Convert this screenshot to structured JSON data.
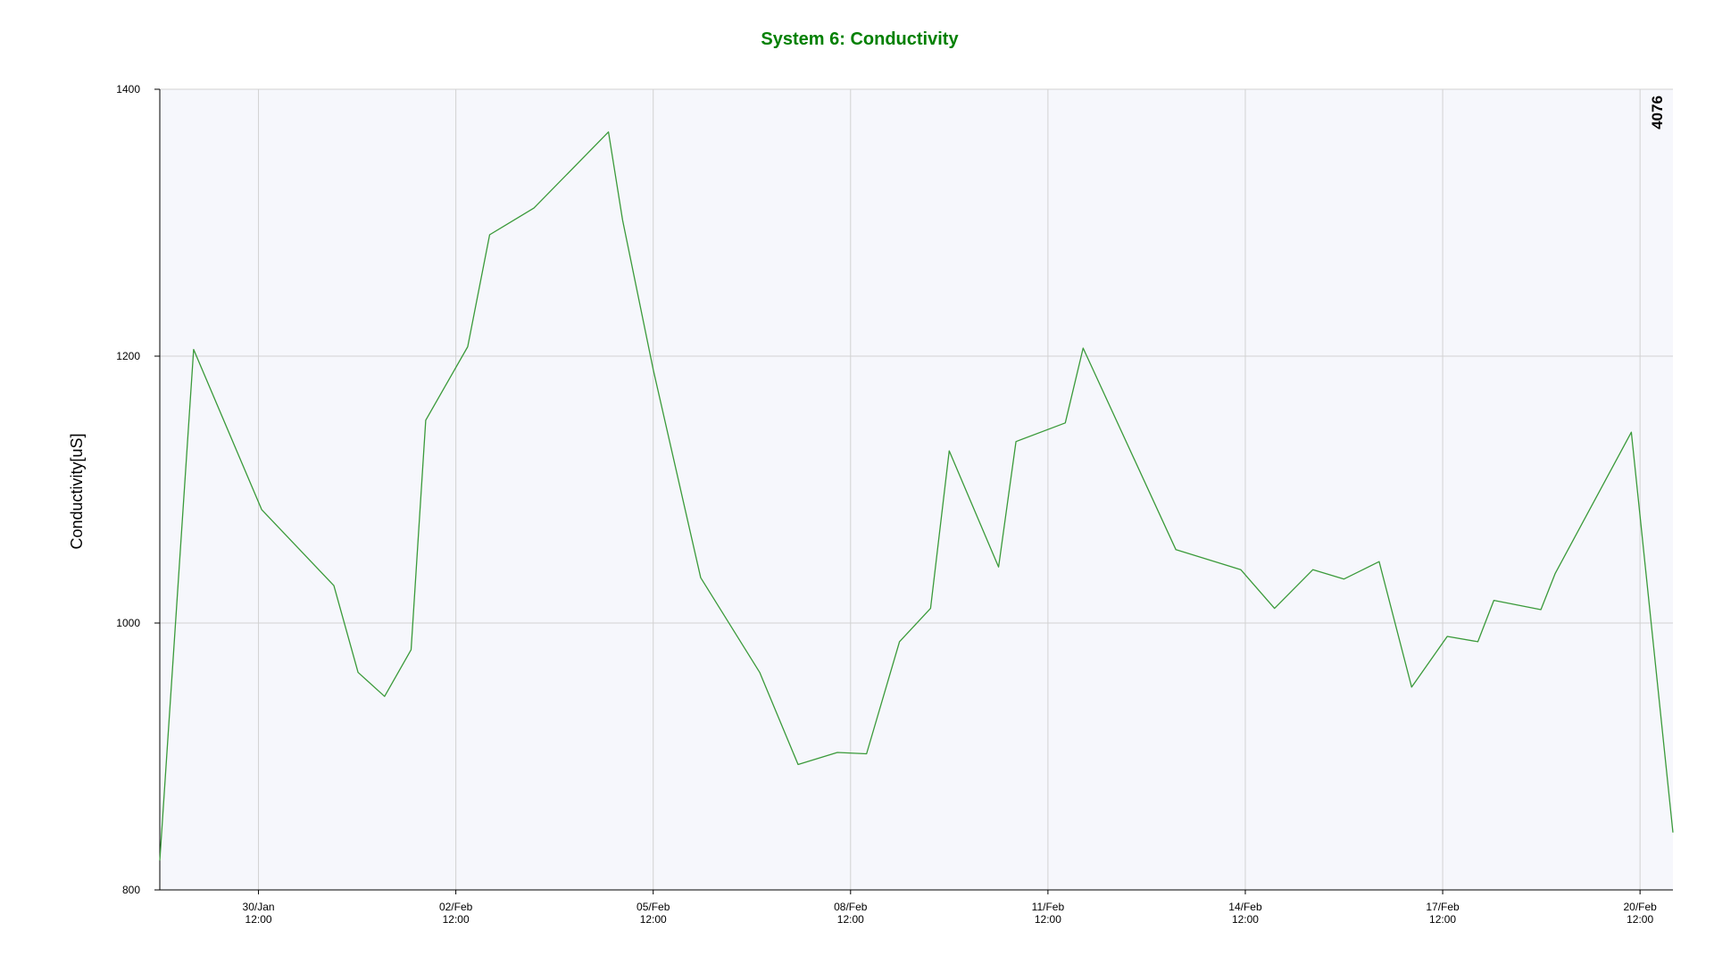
{
  "chart_data": {
    "type": "line",
    "title": "System 6: Conductivity",
    "title_color": "#008000",
    "ylabel": "Conductivity[uS]",
    "xlabel": "",
    "corner_label": "4076",
    "ylim": [
      800,
      1400
    ],
    "yticks": [
      800,
      1000,
      1200,
      1400
    ],
    "xlim": [
      "2025-01-29T00:00",
      "2025-02-21T00:00"
    ],
    "xticks": [
      {
        "date": "2025-01-30T12:00",
        "label": "30/Jan",
        "sublabel": "12:00"
      },
      {
        "date": "2025-02-02T12:00",
        "label": "02/Feb",
        "sublabel": "12:00"
      },
      {
        "date": "2025-02-05T12:00",
        "label": "05/Feb",
        "sublabel": "12:00"
      },
      {
        "date": "2025-02-08T12:00",
        "label": "08/Feb",
        "sublabel": "12:00"
      },
      {
        "date": "2025-02-11T12:00",
        "label": "11/Feb",
        "sublabel": "12:00"
      },
      {
        "date": "2025-02-14T12:00",
        "label": "14/Feb",
        "sublabel": "12:00"
      },
      {
        "date": "2025-02-17T12:00",
        "label": "17/Feb",
        "sublabel": "12:00"
      },
      {
        "date": "2025-02-20T12:00",
        "label": "20/Feb",
        "sublabel": "12:00"
      }
    ],
    "grid": true,
    "plot_background": "#f6f7fc",
    "series": [
      {
        "color": "#3a9a3a",
        "points": [
          {
            "x": "2025-01-29T00:00",
            "y": 822
          },
          {
            "x": "2025-01-29T12:20",
            "y": 1205
          },
          {
            "x": "2025-01-30T13:10",
            "y": 1085
          },
          {
            "x": "2025-01-31T15:30",
            "y": 1028
          },
          {
            "x": "2025-02-01T00:20",
            "y": 963
          },
          {
            "x": "2025-02-01T10:00",
            "y": 945
          },
          {
            "x": "2025-02-01T19:40",
            "y": 980
          },
          {
            "x": "2025-02-02T01:00",
            "y": 1152
          },
          {
            "x": "2025-02-02T16:20",
            "y": 1207
          },
          {
            "x": "2025-02-03T00:20",
            "y": 1291
          },
          {
            "x": "2025-02-03T16:30",
            "y": 1311
          },
          {
            "x": "2025-02-04T19:40",
            "y": 1368
          },
          {
            "x": "2025-02-05T00:50",
            "y": 1302
          },
          {
            "x": "2025-02-05T12:00",
            "y": 1190
          },
          {
            "x": "2025-02-06T05:20",
            "y": 1034
          },
          {
            "x": "2025-02-07T02:50",
            "y": 963
          },
          {
            "x": "2025-02-07T16:50",
            "y": 894
          },
          {
            "x": "2025-02-08T07:10",
            "y": 903
          },
          {
            "x": "2025-02-08T17:50",
            "y": 902
          },
          {
            "x": "2025-02-09T05:50",
            "y": 986
          },
          {
            "x": "2025-02-09T17:10",
            "y": 1011
          },
          {
            "x": "2025-02-10T00:00",
            "y": 1129
          },
          {
            "x": "2025-02-10T18:00",
            "y": 1042
          },
          {
            "x": "2025-02-11T00:20",
            "y": 1136
          },
          {
            "x": "2025-02-11T18:20",
            "y": 1150
          },
          {
            "x": "2025-02-12T00:50",
            "y": 1206
          },
          {
            "x": "2025-02-13T10:40",
            "y": 1055
          },
          {
            "x": "2025-02-14T10:20",
            "y": 1040
          },
          {
            "x": "2025-02-14T22:40",
            "y": 1011
          },
          {
            "x": "2025-02-15T12:40",
            "y": 1040
          },
          {
            "x": "2025-02-16T00:00",
            "y": 1033
          },
          {
            "x": "2025-02-16T12:50",
            "y": 1046
          },
          {
            "x": "2025-02-17T00:40",
            "y": 952
          },
          {
            "x": "2025-02-17T13:40",
            "y": 990
          },
          {
            "x": "2025-02-18T00:50",
            "y": 986
          },
          {
            "x": "2025-02-18T06:40",
            "y": 1017
          },
          {
            "x": "2025-02-18T23:50",
            "y": 1010
          },
          {
            "x": "2025-02-19T05:00",
            "y": 1037
          },
          {
            "x": "2025-02-20T08:50",
            "y": 1143
          },
          {
            "x": "2025-02-21T00:00",
            "y": 843
          }
        ]
      }
    ]
  }
}
